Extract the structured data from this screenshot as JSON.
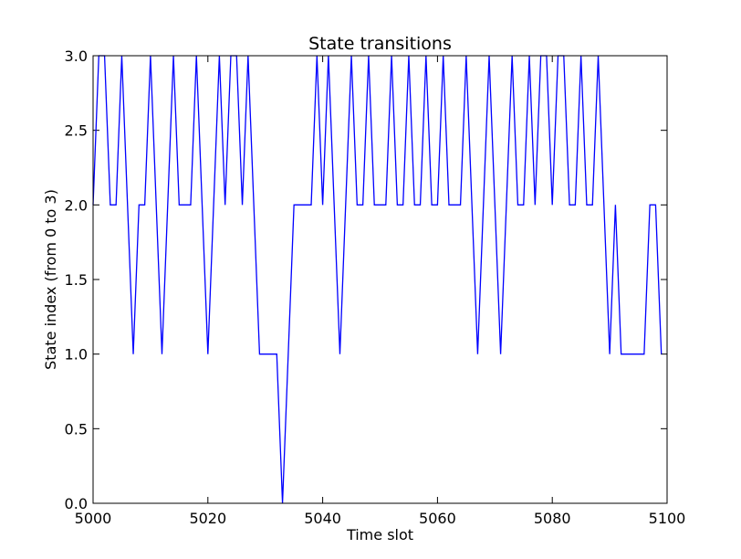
{
  "chart_data": {
    "type": "line",
    "title": "State transitions",
    "xlabel": "Time slot",
    "ylabel": "State index (from 0 to 3)",
    "xlim": [
      5000,
      5100
    ],
    "ylim": [
      0.0,
      3.0
    ],
    "x_ticks": [
      "5000",
      "5020",
      "5040",
      "5060",
      "5080",
      "5100"
    ],
    "y_ticks": [
      "0.0",
      "0.5",
      "1.0",
      "1.5",
      "2.0",
      "2.5",
      "3.0"
    ],
    "grid": false,
    "line_color": "#0000ff",
    "series": [
      {
        "x": [
          5000,
          5001,
          5002,
          5003,
          5004,
          5005,
          5006,
          5007,
          5008,
          5009,
          5010,
          5011,
          5012,
          5013,
          5014,
          5015,
          5016,
          5017,
          5018,
          5019,
          5020,
          5021,
          5022,
          5023,
          5024,
          5025,
          5026,
          5027,
          5028,
          5029,
          5030,
          5031,
          5032,
          5033,
          5034,
          5035,
          5036,
          5037,
          5038,
          5039,
          5040,
          5041,
          5042,
          5043,
          5044,
          5045,
          5046,
          5047,
          5048,
          5049,
          5050,
          5051,
          5052,
          5053,
          5054,
          5055,
          5056,
          5057,
          5058,
          5059,
          5060,
          5061,
          5062,
          5063,
          5064,
          5065,
          5066,
          5067,
          5068,
          5069,
          5070,
          5071,
          5072,
          5073,
          5074,
          5075,
          5076,
          5077,
          5078,
          5079,
          5080,
          5081,
          5082,
          5083,
          5084,
          5085,
          5086,
          5087,
          5088,
          5089,
          5090,
          5091,
          5092,
          5093,
          5094,
          5095,
          5096,
          5097,
          5098,
          5099
        ],
        "values": [
          2,
          3,
          3,
          2,
          2,
          3,
          2,
          1,
          2,
          2,
          3,
          2,
          1,
          2,
          3,
          2,
          2,
          2,
          3,
          2,
          1,
          2,
          3,
          2,
          3,
          3,
          2,
          3,
          2,
          1,
          1,
          1,
          1,
          0,
          1,
          2,
          2,
          2,
          2,
          3,
          2,
          3,
          2,
          1,
          2,
          3,
          2,
          2,
          3,
          2,
          2,
          2,
          3,
          2,
          2,
          3,
          2,
          2,
          3,
          2,
          2,
          3,
          2,
          2,
          2,
          3,
          2,
          1,
          2,
          3,
          2,
          1,
          2,
          3,
          2,
          2,
          3,
          2,
          3,
          3,
          2,
          3,
          3,
          2,
          2,
          3,
          2,
          2,
          3,
          2,
          1,
          2,
          1,
          1,
          1,
          1,
          1,
          2,
          2,
          1
        ]
      }
    ]
  }
}
